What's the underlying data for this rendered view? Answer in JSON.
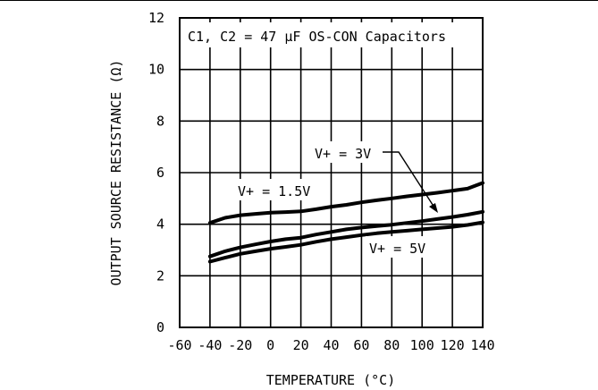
{
  "chart_data": {
    "type": "line",
    "title": "",
    "xlabel": "TEMPERATURE (°C)",
    "ylabel": "OUTPUT SOURCE RESISTANCE (Ω)",
    "xlim": [
      -60,
      140
    ],
    "ylim": [
      0,
      12
    ],
    "x_ticks": [
      -60,
      -40,
      -20,
      0,
      20,
      40,
      60,
      80,
      100,
      120,
      140
    ],
    "x_tick_labels": [
      "-60",
      "-40",
      "-20",
      "0",
      "20",
      "40",
      "60",
      "80",
      "100",
      "120",
      "140"
    ],
    "y_ticks": [
      0,
      2,
      4,
      6,
      8,
      10,
      12
    ],
    "y_tick_labels": [
      "0",
      "2",
      "4",
      "6",
      "8",
      "10",
      "12"
    ],
    "grid": true,
    "annotations": {
      "conditions": "C1, C2 = 47 µF OS-CON Capacitors",
      "series_1_5v": "V+ = 1.5V",
      "series_3v": "V+ = 3V",
      "series_5v": "V+ = 5V"
    },
    "series": [
      {
        "name": "V+ = 1.5V",
        "x": [
          -40,
          -30,
          -20,
          -10,
          0,
          10,
          20,
          30,
          40,
          50,
          60,
          70,
          80,
          90,
          100,
          110,
          120,
          130,
          140
        ],
        "values": [
          4.05,
          4.25,
          4.35,
          4.4,
          4.45,
          4.47,
          4.5,
          4.58,
          4.68,
          4.75,
          4.85,
          4.93,
          5.0,
          5.08,
          5.15,
          5.22,
          5.3,
          5.38,
          5.6
        ]
      },
      {
        "name": "V+ = 3V",
        "x": [
          -40,
          -30,
          -20,
          -10,
          0,
          10,
          20,
          30,
          40,
          50,
          60,
          70,
          80,
          90,
          100,
          110,
          120,
          130,
          140
        ],
        "values": [
          2.75,
          2.95,
          3.1,
          3.22,
          3.33,
          3.42,
          3.48,
          3.6,
          3.7,
          3.8,
          3.87,
          3.93,
          3.98,
          4.05,
          4.12,
          4.2,
          4.28,
          4.37,
          4.48
        ]
      },
      {
        "name": "V+ = 5V",
        "x": [
          -40,
          -30,
          -20,
          -10,
          0,
          10,
          20,
          30,
          40,
          50,
          60,
          70,
          80,
          90,
          100,
          110,
          120,
          130,
          140
        ],
        "values": [
          2.55,
          2.7,
          2.85,
          2.95,
          3.05,
          3.12,
          3.2,
          3.32,
          3.42,
          3.5,
          3.58,
          3.65,
          3.7,
          3.75,
          3.8,
          3.85,
          3.9,
          3.97,
          4.07
        ]
      }
    ]
  }
}
